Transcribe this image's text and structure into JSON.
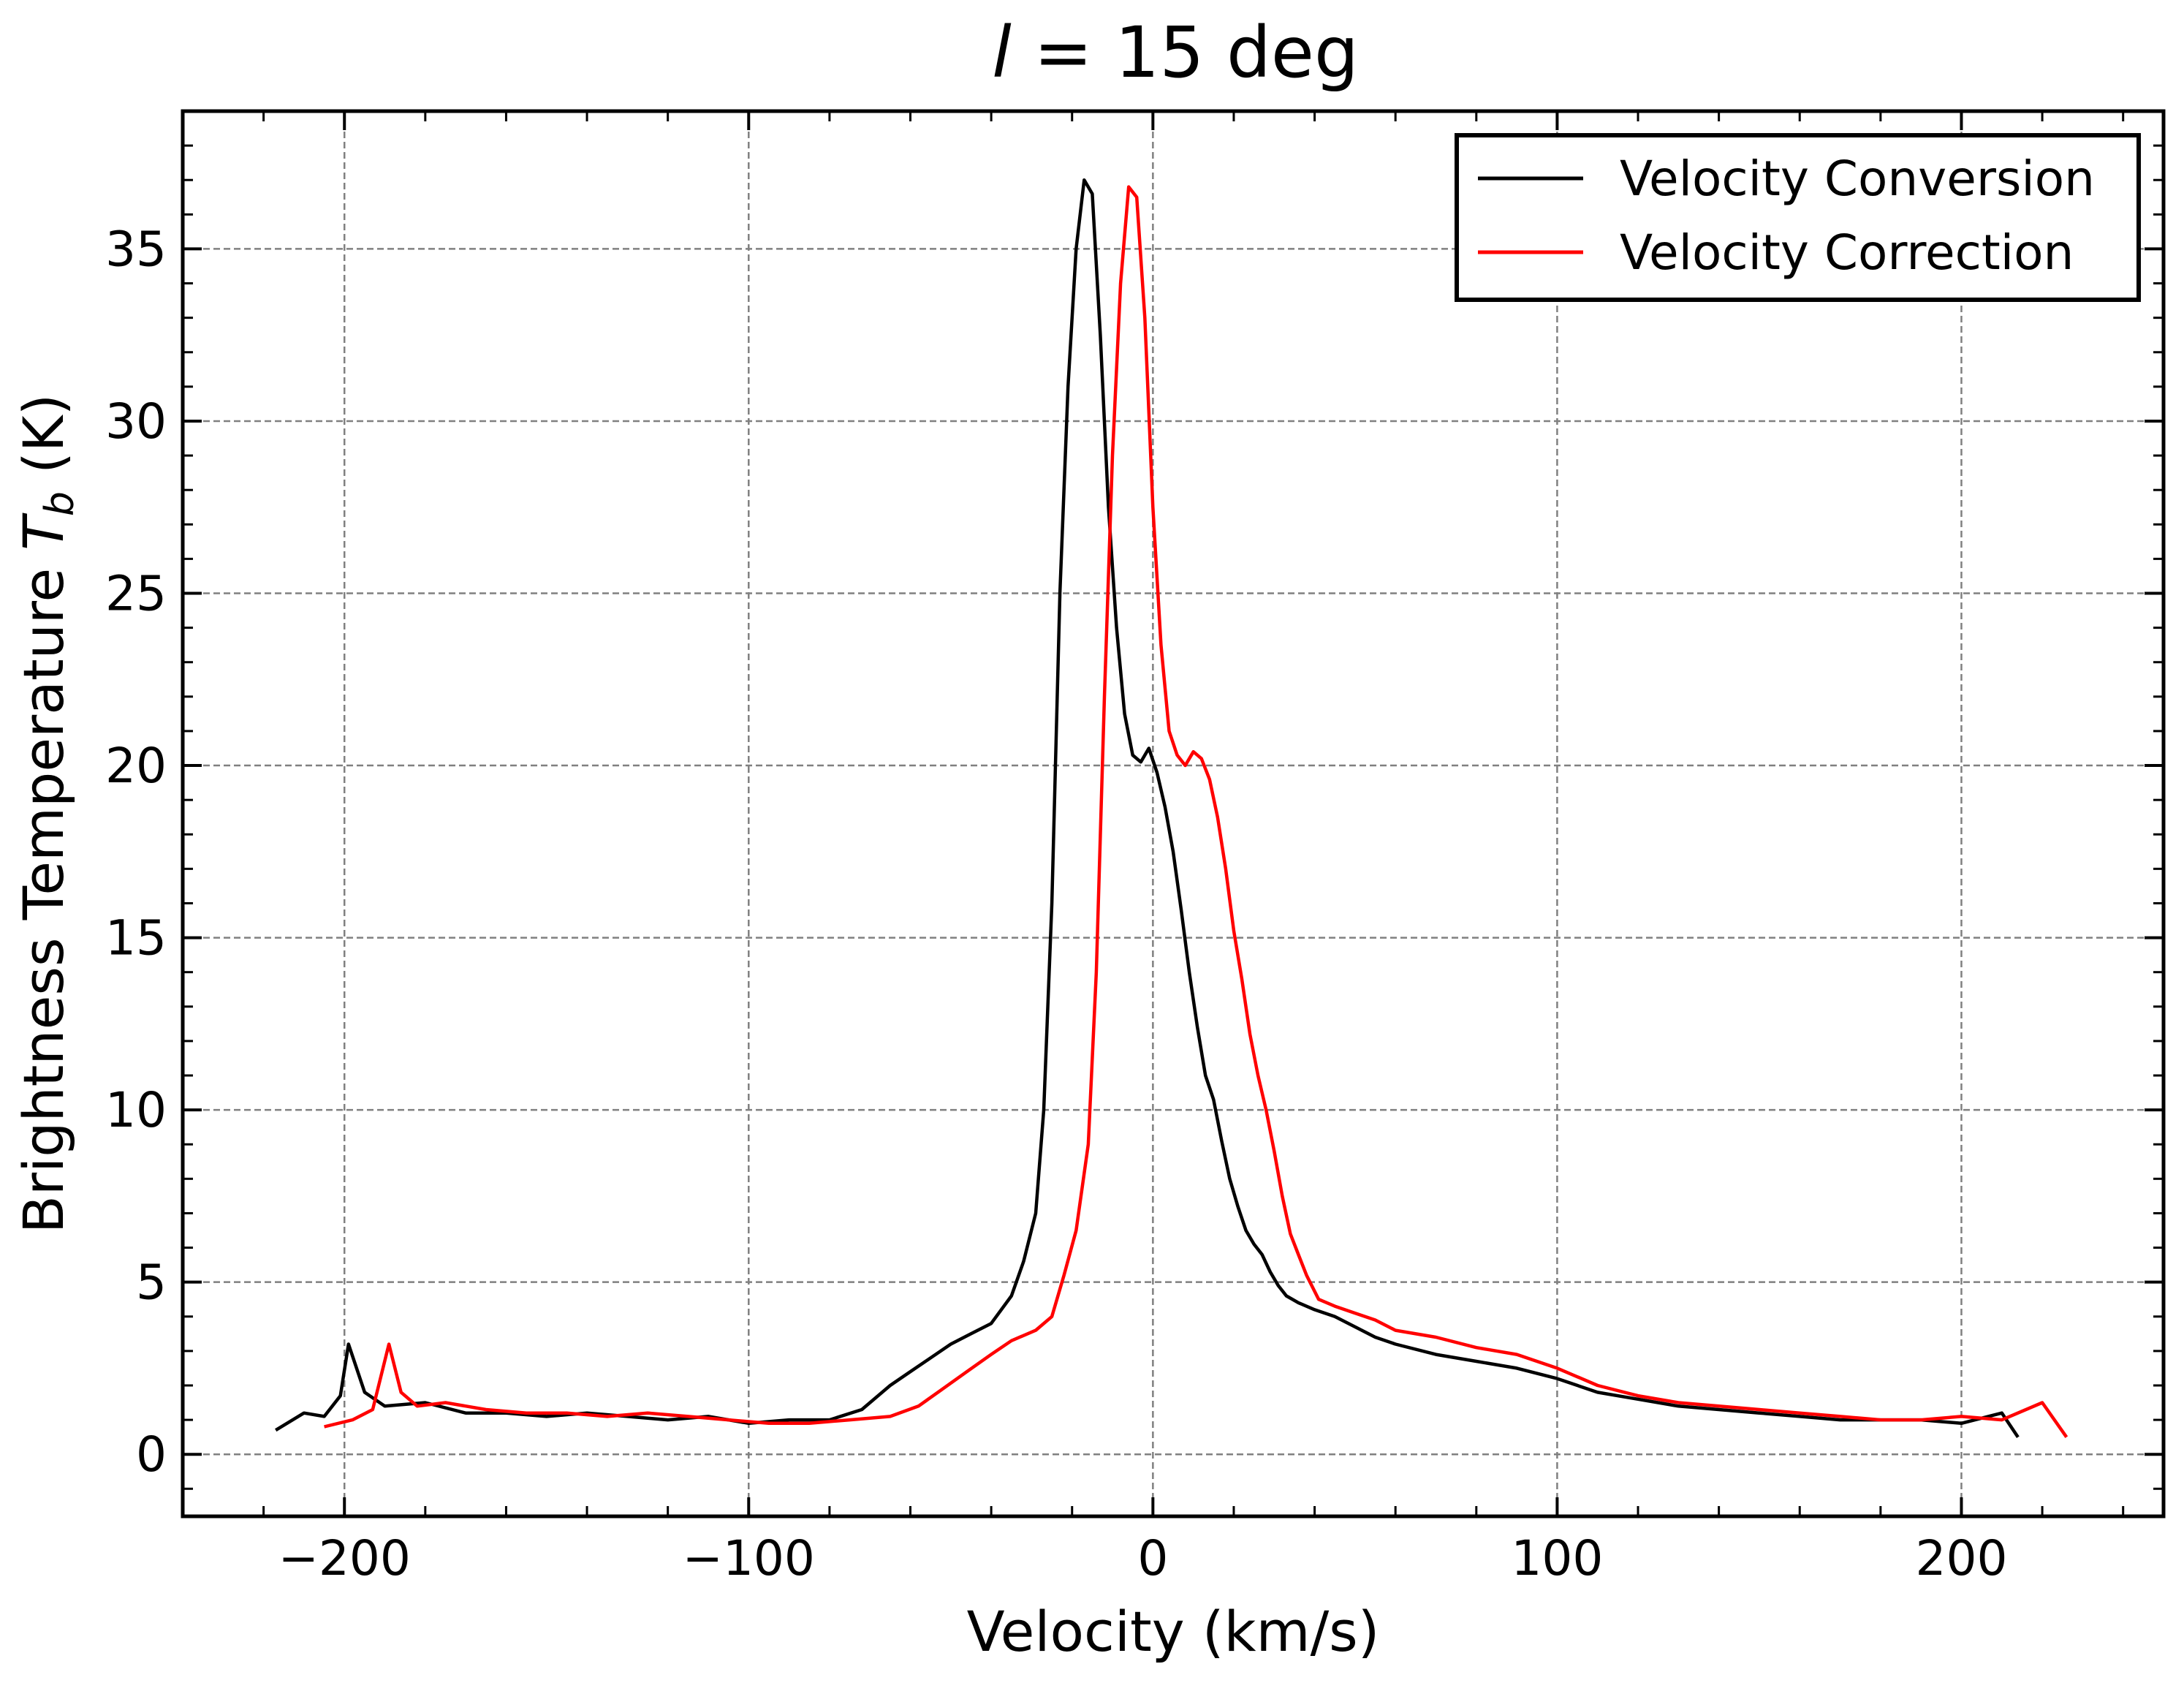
{
  "chart_data": {
    "type": "line",
    "title_prefix": "l",
    "title_rest": " = 15 deg",
    "xlabel": "Velocity (km/s)",
    "ylabel_main": "Brightness Temperature ",
    "ylabel_sym": "T",
    "ylabel_sub": "b",
    "ylabel_unit": " (K)",
    "xlim": [
      -240,
      250
    ],
    "ylim": [
      -1.8,
      39
    ],
    "xticks": [
      -200,
      -100,
      0,
      100,
      200
    ],
    "xtick_labels": [
      "−200",
      "−100",
      "0",
      "100",
      "200"
    ],
    "yticks": [
      0,
      5,
      10,
      15,
      20,
      25,
      30,
      35
    ],
    "ytick_labels": [
      "0",
      "5",
      "10",
      "15",
      "20",
      "25",
      "30",
      "35"
    ],
    "grid": true,
    "legend_position": "top-right",
    "series": [
      {
        "name": "Velocity Conversion",
        "color": "#000000",
        "x": [
          -217,
          -210,
          -205,
          -201,
          -199,
          -195,
          -190,
          -180,
          -170,
          -160,
          -150,
          -140,
          -130,
          -120,
          -110,
          -100,
          -90,
          -80,
          -72,
          -65,
          -60,
          -55,
          -50,
          -45,
          -40,
          -35,
          -32,
          -29,
          -27,
          -25,
          -23,
          -21,
          -19,
          -17,
          -15,
          -13,
          -11,
          -9,
          -7,
          -5,
          -3,
          -1,
          1,
          3,
          5,
          7,
          9,
          11,
          13,
          15,
          17,
          19,
          21,
          23,
          25,
          27,
          29,
          31,
          33,
          36,
          40,
          45,
          50,
          55,
          60,
          70,
          80,
          90,
          100,
          110,
          120,
          130,
          140,
          150,
          160,
          170,
          180,
          190,
          200,
          210,
          214
        ],
        "y": [
          0.7,
          1.2,
          1.1,
          1.7,
          3.2,
          1.8,
          1.4,
          1.5,
          1.2,
          1.2,
          1.1,
          1.2,
          1.1,
          1.0,
          1.1,
          0.9,
          1.0,
          1.0,
          1.3,
          2.0,
          2.4,
          2.8,
          3.2,
          3.5,
          3.8,
          4.6,
          5.6,
          7.0,
          10.0,
          16.0,
          25.0,
          31.0,
          35.0,
          37.0,
          36.6,
          32.5,
          27.5,
          24.0,
          21.5,
          20.3,
          20.1,
          20.5,
          19.8,
          18.8,
          17.5,
          15.8,
          14.0,
          12.4,
          11.0,
          10.3,
          9.1,
          8.0,
          7.2,
          6.5,
          6.1,
          5.8,
          5.3,
          4.9,
          4.6,
          4.4,
          4.2,
          4.0,
          3.7,
          3.4,
          3.2,
          2.9,
          2.7,
          2.5,
          2.2,
          1.8,
          1.6,
          1.4,
          1.3,
          1.2,
          1.1,
          1.0,
          1.0,
          1.0,
          0.9,
          1.2,
          0.5
        ]
      },
      {
        "name": "Velocity Correction",
        "color": "#ff0000",
        "x": [
          -205,
          -198,
          -193,
          -189,
          -186,
          -182,
          -175,
          -165,
          -155,
          -145,
          -135,
          -125,
          -115,
          -105,
          -95,
          -85,
          -75,
          -65,
          -58,
          -52,
          -46,
          -40,
          -35,
          -29,
          -25,
          -22,
          -19,
          -16,
          -14,
          -12,
          -10,
          -8,
          -6,
          -4,
          -2,
          0,
          2,
          4,
          6,
          8,
          10,
          12,
          14,
          16,
          18,
          20,
          22,
          24,
          26,
          28,
          30,
          32,
          34,
          36,
          38,
          41,
          45,
          50,
          55,
          60,
          70,
          80,
          90,
          100,
          110,
          120,
          130,
          140,
          150,
          160,
          170,
          180,
          190,
          200,
          210,
          220,
          226
        ],
        "y": [
          0.8,
          1.0,
          1.3,
          3.2,
          1.8,
          1.4,
          1.5,
          1.3,
          1.2,
          1.2,
          1.1,
          1.2,
          1.1,
          1.0,
          0.9,
          0.9,
          1.0,
          1.1,
          1.4,
          1.9,
          2.4,
          2.9,
          3.3,
          3.6,
          4.0,
          5.2,
          6.5,
          9.0,
          14.0,
          22.0,
          29.0,
          34.0,
          36.8,
          36.5,
          33.0,
          27.5,
          23.5,
          21.0,
          20.3,
          20.0,
          20.4,
          20.2,
          19.6,
          18.5,
          17.0,
          15.2,
          13.8,
          12.2,
          11.0,
          10.0,
          8.8,
          7.5,
          6.4,
          5.8,
          5.2,
          4.5,
          4.3,
          4.1,
          3.9,
          3.6,
          3.4,
          3.1,
          2.9,
          2.5,
          2.0,
          1.7,
          1.5,
          1.4,
          1.3,
          1.2,
          1.1,
          1.0,
          1.0,
          1.1,
          1.0,
          1.5,
          0.5
        ]
      }
    ]
  }
}
